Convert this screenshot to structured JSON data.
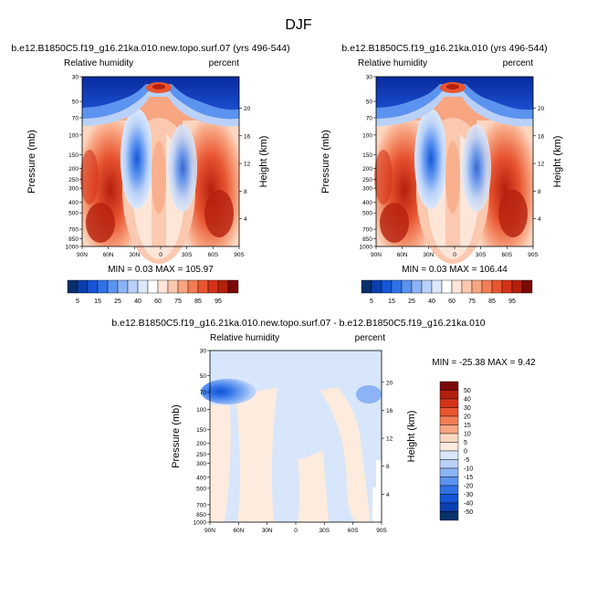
{
  "figure": {
    "title": "DJF"
  },
  "chart_data": [
    {
      "type": "heatmap",
      "title": "b.e12.B1850C5.f19_g16.21ka.010.new.topo.surf.07 (yrs 496-544)",
      "left_label": "Relative humidity",
      "right_label": "percent",
      "ylabel": "Pressure (mb)",
      "y2label": "Height (km)",
      "x_ticks": [
        "90N",
        "60N",
        "30N",
        "0",
        "30S",
        "60S",
        "90S"
      ],
      "x_range": [
        90,
        -90
      ],
      "y_ticks": [
        "30",
        "50",
        "70",
        "100",
        "150",
        "200",
        "250",
        "300",
        "400",
        "500",
        "700",
        "850",
        "1000"
      ],
      "y_range_mb": [
        1000,
        30
      ],
      "y2_ticks": [
        "20",
        "16",
        "12",
        "8",
        "4"
      ],
      "stats": "MIN =   0.03  MAX = 105.97",
      "colorbar_levels": [
        "5",
        "15",
        "25",
        "40",
        "60",
        "75",
        "85",
        "95"
      ]
    },
    {
      "type": "heatmap",
      "title": "b.e12.B1850C5.f19_g16.21ka.010 (yrs 496-544)",
      "left_label": "Relative humidity",
      "right_label": "percent",
      "ylabel": "Pressure (mb)",
      "y2label": "Height (km)",
      "x_ticks": [
        "90N",
        "60N",
        "30N",
        "0",
        "30S",
        "60S",
        "90S"
      ],
      "x_range": [
        90,
        -90
      ],
      "y_ticks": [
        "30",
        "50",
        "70",
        "100",
        "150",
        "200",
        "250",
        "300",
        "400",
        "500",
        "700",
        "850",
        "1000"
      ],
      "y_range_mb": [
        1000,
        30
      ],
      "y2_ticks": [
        "20",
        "16",
        "12",
        "8",
        "4"
      ],
      "stats": "MIN =   0.03  MAX = 106.44",
      "colorbar_levels": [
        "5",
        "15",
        "25",
        "40",
        "60",
        "75",
        "85",
        "95"
      ]
    },
    {
      "type": "heatmap",
      "title": "b.e12.B1850C5.f19_g16.21ka.010.new.topo.surf.07 - b.e12.B1850C5.f19_g16.21ka.010",
      "left_label": "Relative humidity",
      "right_label": "percent",
      "ylabel": "Pressure (mb)",
      "y2label": "Height (km)",
      "x_ticks": [
        "90N",
        "60N",
        "30N",
        "0",
        "30S",
        "60S",
        "90S"
      ],
      "x_range": [
        90,
        -90
      ],
      "y_ticks": [
        "30",
        "50",
        "70",
        "100",
        "150",
        "200",
        "250",
        "300",
        "400",
        "500",
        "700",
        "850",
        "1000"
      ],
      "y_range_mb": [
        1000,
        30
      ],
      "y2_ticks": [
        "20",
        "16",
        "12",
        "8",
        "4"
      ],
      "stats": "MIN = -25.38  MAX =   9.42",
      "colorbar_levels": [
        "50",
        "40",
        "30",
        "20",
        "15",
        "10",
        "5",
        "0",
        "-5",
        "-10",
        "-15",
        "-20",
        "-30",
        "-40",
        "-50"
      ]
    }
  ],
  "colors": {
    "abs_scale": [
      "#08306b",
      "#0a3fb0",
      "#1555d6",
      "#2f72e8",
      "#5b93f0",
      "#8cb3f5",
      "#b9d1f8",
      "#dde9fb",
      "#ffffff",
      "#fde6d8",
      "#fbc8b0",
      "#f8a582",
      "#f27d55",
      "#e85530",
      "#d43318",
      "#b4200e",
      "#7a0a06"
    ],
    "diff_scale": [
      "#7a0a06",
      "#b4200e",
      "#d43318",
      "#e85530",
      "#f27d55",
      "#f8a582",
      "#fbd7c2",
      "#fdebdd",
      "#d7e6fa",
      "#b9d1f8",
      "#8cb3f5",
      "#5b93f0",
      "#2f72e8",
      "#1555d6",
      "#0a3fb0",
      "#08306b"
    ]
  }
}
